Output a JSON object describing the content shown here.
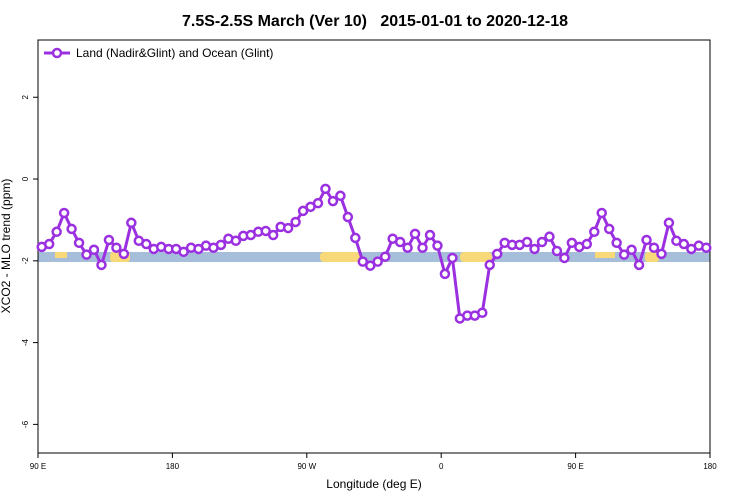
{
  "chart_data": {
    "type": "line",
    "title": "7.5S-2.5S March (Ver 10)   2015-01-01 to 2020-12-18",
    "x_label": "Longitude (deg E)",
    "y_label": "XCO2 - MLO trend (ppm)",
    "xlim": [
      90,
      540
    ],
    "xticks": [
      {
        "value": 90,
        "label": "90 E"
      },
      {
        "value": 180,
        "label": "180"
      },
      {
        "value": 270,
        "label": "90 W"
      },
      {
        "value": 360,
        "label": "0"
      },
      {
        "value": 450,
        "label": "90 E"
      },
      {
        "value": 540,
        "label": "180"
      }
    ],
    "ylim": [
      -6.7,
      3.4
    ],
    "yticks": [
      2,
      0,
      -2,
      -4,
      -6
    ],
    "legend": "top-left",
    "x": [
      92.5,
      97.5,
      102.5,
      107.5,
      112.5,
      117.5,
      122.5,
      127.5,
      132.5,
      137.5,
      142.5,
      147.5,
      152.5,
      157.5,
      162.5,
      167.5,
      172.5,
      177.5,
      182.5,
      187.5,
      192.5,
      197.5,
      202.5,
      207.5,
      212.5,
      217.5,
      222.5,
      227.5,
      232.5,
      237.5,
      242.5,
      247.5,
      252.5,
      257.5,
      262.5,
      267.5,
      272.5,
      277.5,
      282.5,
      287.5,
      292.5,
      297.5,
      302.5,
      307.5,
      312.5,
      317.5,
      322.5,
      327.5,
      332.5,
      337.5,
      342.5,
      347.5,
      352.5,
      357.5,
      362.5,
      367.5,
      372.5,
      377.5,
      382.5,
      387.5,
      392.5,
      397.5,
      402.5,
      407.5,
      412.5,
      417.5,
      422.5,
      427.5,
      432.5,
      437.5,
      442.5,
      447.5,
      452.5,
      457.5,
      462.5,
      467.5,
      472.5,
      477.5,
      482.5,
      487.5,
      492.5,
      497.5,
      502.5,
      507.5,
      512.5,
      517.5,
      522.5,
      527.5,
      532.5,
      537.5
    ],
    "series": [
      {
        "name": "Land (Nadir&Glint) and Ocean (Glint)",
        "color": "#9b30e0",
        "values": [
          -1.66,
          -1.59,
          -1.29,
          -0.83,
          -1.22,
          -1.56,
          -1.85,
          -1.73,
          -2.1,
          -1.49,
          -1.68,
          -1.83,
          -1.07,
          -1.51,
          -1.59,
          -1.71,
          -1.66,
          -1.71,
          -1.71,
          -1.78,
          -1.68,
          -1.71,
          -1.63,
          -1.68,
          -1.61,
          -1.46,
          -1.51,
          -1.39,
          -1.37,
          -1.29,
          -1.27,
          -1.37,
          -1.17,
          -1.2,
          -1.05,
          -0.78,
          -0.68,
          -0.59,
          -0.24,
          -0.54,
          -0.41,
          -0.93,
          -1.44,
          -2.02,
          -2.12,
          -2.02,
          -1.9,
          -1.46,
          -1.54,
          -1.68,
          -1.34,
          -1.68,
          -1.37,
          -1.63,
          -2.32,
          -1.93,
          -3.41,
          -3.34,
          -3.34,
          -3.27,
          -2.1,
          -1.83,
          -1.56,
          -1.61,
          -1.61,
          -1.54,
          -1.71,
          -1.54,
          -1.41,
          -1.76,
          -1.93,
          -1.56,
          -1.66,
          -1.59,
          -1.29,
          -0.83,
          -1.22,
          -1.56,
          -1.85,
          -1.73,
          -2.1,
          -1.49,
          -1.68,
          -1.83,
          -1.07,
          -1.51,
          -1.59,
          -1.71,
          -1.63,
          -1.68
        ]
      }
    ]
  }
}
